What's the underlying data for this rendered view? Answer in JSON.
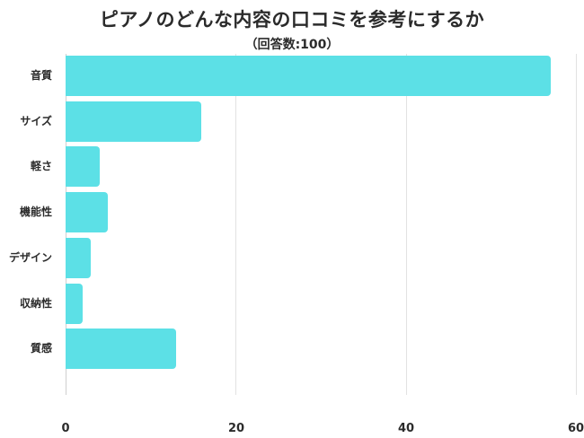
{
  "header": {
    "title": "ピアノのどんな内容の口コミを参考にするか",
    "subtitle": "（回答数:100）"
  },
  "colors": {
    "bar": "#5ce0e6",
    "grid": "#e2e2e2",
    "text": "#2b2b2b"
  },
  "chart_data": {
    "type": "bar",
    "orientation": "horizontal",
    "title": "ピアノのどんな内容の口コミを参考にするか",
    "subtitle": "（回答数:100）",
    "categories": [
      "音質",
      "サイズ",
      "軽さ",
      "機能性",
      "デザイン",
      "収納性",
      "質感"
    ],
    "values": [
      57,
      16,
      4,
      5,
      3,
      2,
      13
    ],
    "xlabel": "",
    "ylabel": "",
    "xlim": [
      0,
      60
    ],
    "xticks": [
      "0",
      "20",
      "40",
      "60"
    ],
    "grid": true,
    "legend": null
  }
}
